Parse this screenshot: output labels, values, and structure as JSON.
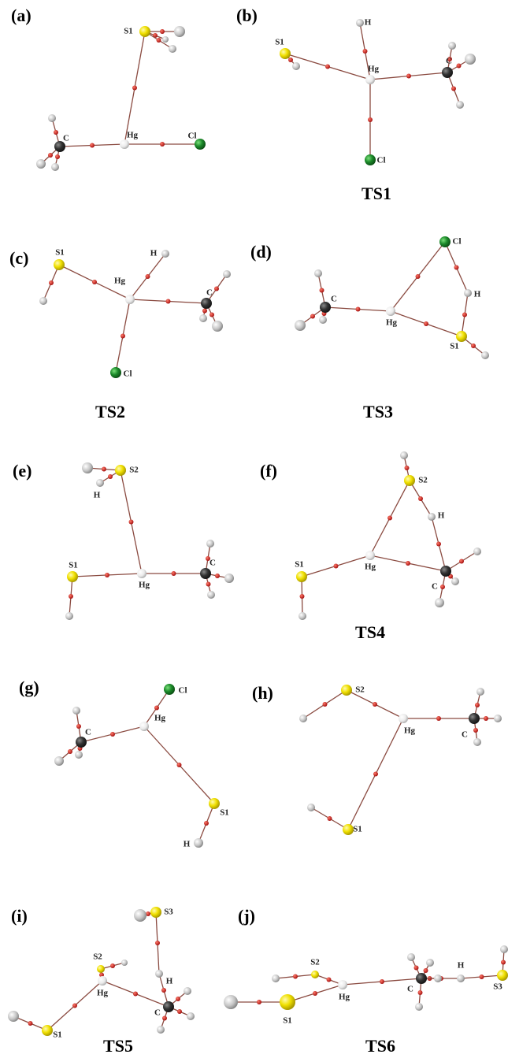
{
  "panels": [
    {
      "label": "(a)",
      "atoms": [
        "S1",
        "Hg",
        "Cl",
        "C"
      ]
    },
    {
      "label": "(b)",
      "caption": "TS1",
      "atoms": [
        "S1",
        "H",
        "Hg",
        "C",
        "Cl"
      ]
    },
    {
      "label": "(c)",
      "caption": "TS2",
      "atoms": [
        "S1",
        "H",
        "Hg",
        "C",
        "Cl"
      ]
    },
    {
      "label": "(d)",
      "caption": "TS3",
      "atoms": [
        "Cl",
        "H",
        "C",
        "Hg",
        "S1"
      ]
    },
    {
      "label": "(e)",
      "atoms": [
        "S2",
        "H",
        "S1",
        "Hg",
        "C"
      ]
    },
    {
      "label": "(f)",
      "caption": "TS4",
      "atoms": [
        "S2",
        "H",
        "S1",
        "Hg",
        "C"
      ]
    },
    {
      "label": "(g)",
      "atoms": [
        "Cl",
        "C",
        "Hg",
        "S1",
        "H"
      ]
    },
    {
      "label": "(h)",
      "atoms": [
        "S2",
        "Hg",
        "C",
        "S1"
      ]
    },
    {
      "label": "(i)",
      "caption": "TS5",
      "atoms": [
        "S3",
        "S2",
        "H",
        "Hg",
        "C",
        "S1"
      ]
    },
    {
      "label": "(j)",
      "caption": "TS6",
      "atoms": [
        "S2",
        "H",
        "S1",
        "Hg",
        "C",
        "S3"
      ]
    }
  ]
}
